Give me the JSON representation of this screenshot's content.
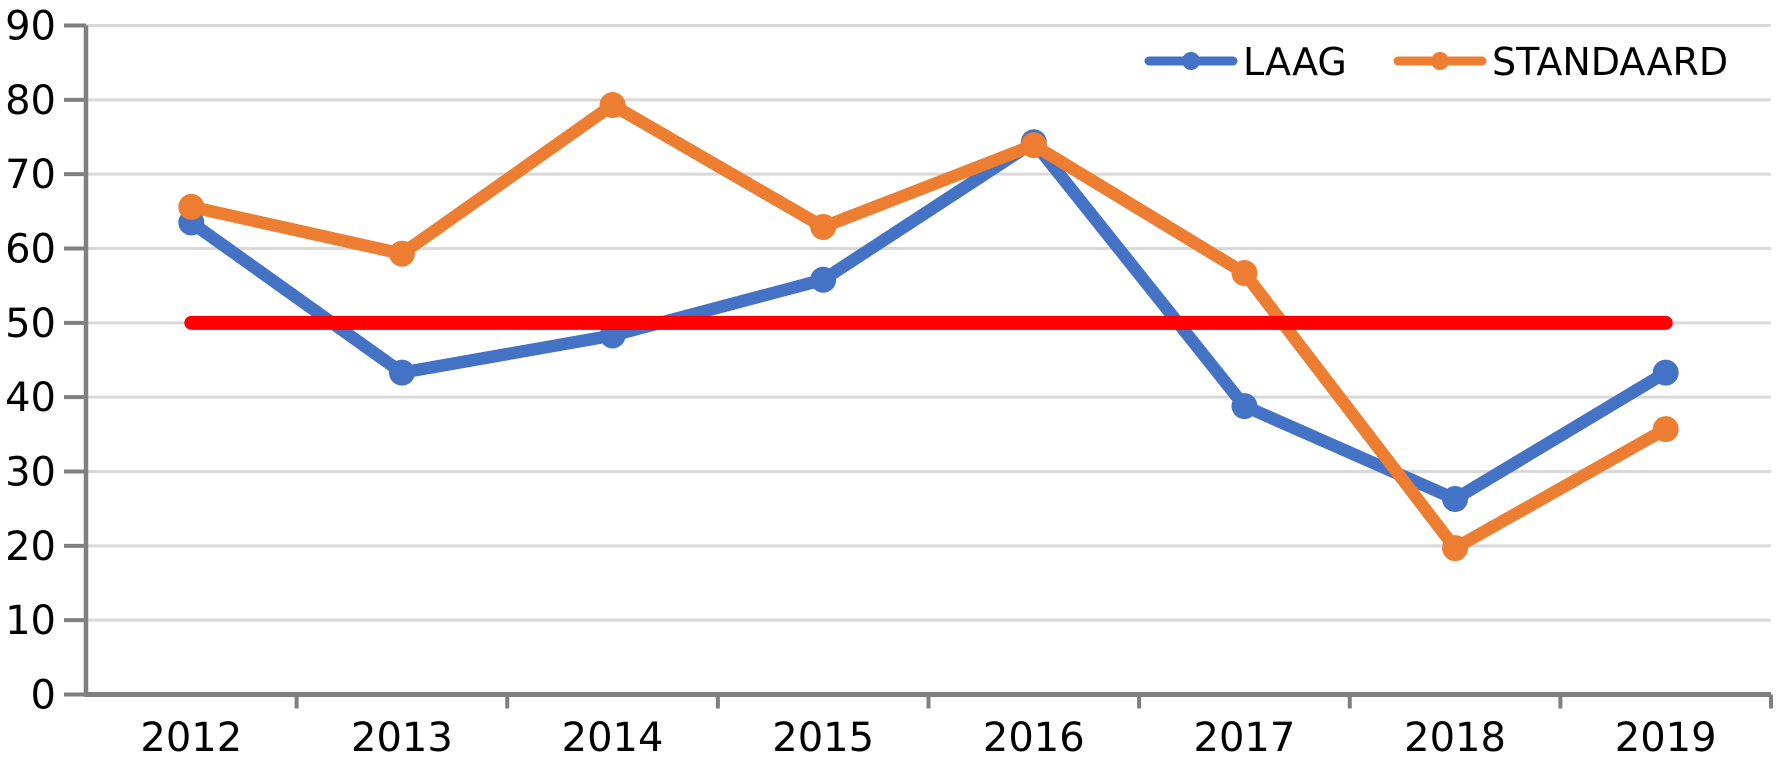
{
  "chart_data": {
    "type": "line",
    "categories": [
      "2012",
      "2013",
      "2014",
      "2015",
      "2016",
      "2017",
      "2018",
      "2019"
    ],
    "series": [
      {
        "name": "LAAG",
        "color": "#4472C4",
        "values": [
          63.5,
          43.3,
          48.3,
          55.8,
          74.3,
          38.8,
          26.3,
          43.3
        ]
      },
      {
        "name": "STANDAARD",
        "color": "#ED7D31",
        "values": [
          65.6,
          59.3,
          79.3,
          62.9,
          73.9,
          56.7,
          19.7,
          35.7
        ]
      }
    ],
    "reference_line": {
      "value": 50,
      "color": "#FF0000"
    },
    "xlabel": "",
    "ylabel": "",
    "ylim": [
      0,
      90
    ],
    "yticks": [
      0,
      10,
      20,
      30,
      40,
      50,
      60,
      70,
      80,
      90
    ],
    "grid": true,
    "legend_position": "top-right",
    "colors": {
      "grid": "#D9D9D9",
      "axis": "#7F7F7F",
      "text": "#000000",
      "background": "#FFFFFF"
    }
  }
}
